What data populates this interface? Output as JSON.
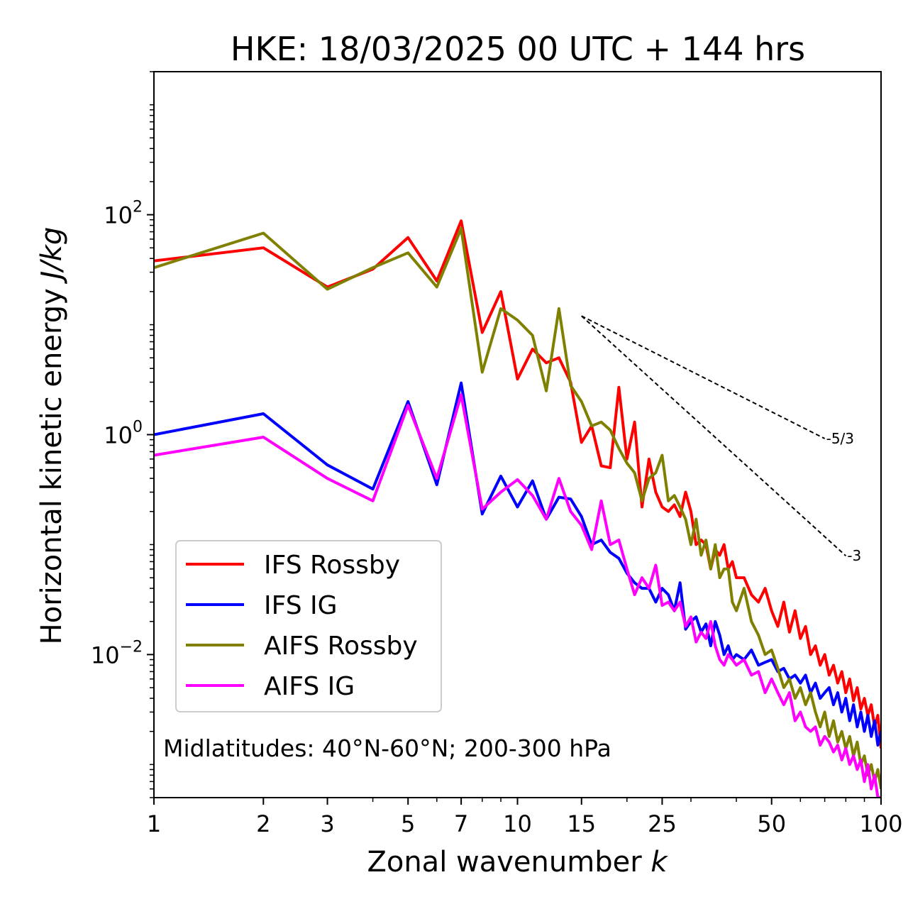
{
  "chart_data": {
    "type": "line",
    "title": "HKE: 18/03/2025 00 UTC + 144 hrs",
    "xlabel": "Zonal wavenumber ",
    "xlabel_italic": "k",
    "ylabel": "Horizontal kinetic energy ",
    "ylabel_italic": "J/kg",
    "xscale": "log",
    "yscale": "log",
    "xlim": [
      1,
      100
    ],
    "ylim": [
      0.0005,
      2000
    ],
    "x_ticks": [
      1,
      2,
      3,
      5,
      7,
      10,
      15,
      25,
      50,
      100
    ],
    "x_tick_labels": [
      "1",
      "2",
      "3",
      "5",
      "7",
      "10",
      "15",
      "25",
      "50",
      "100"
    ],
    "y_ticks": [
      {
        "value": 100,
        "base": "10",
        "exp": "2"
      },
      {
        "value": 1,
        "base": "10",
        "exp": "0"
      },
      {
        "value": 0.01,
        "base": "10",
        "exp": "−2"
      }
    ],
    "legend_position": "lower-left",
    "annotation": "Midlatitudes: 40°N-60°N; 200-300 hPa",
    "reference_slopes": [
      {
        "label": "-5/3",
        "slope": -1.6667,
        "x_start": 15,
        "x_end": 70,
        "y_start": 12
      },
      {
        "label": "-3",
        "slope": -3,
        "x_start": 15,
        "x_end": 80,
        "y_start": 12
      }
    ],
    "series": [
      {
        "name": "IFS Rossby",
        "color": "#ff0000",
        "x": [
          1,
          2,
          3,
          4,
          5,
          6,
          7,
          8,
          9,
          10,
          11,
          12,
          13,
          14,
          15,
          16,
          17,
          18,
          19,
          20,
          21,
          22,
          23,
          24,
          25,
          26,
          27,
          28,
          29,
          30,
          31,
          32,
          33,
          34,
          35,
          36,
          37,
          38,
          39,
          40,
          42,
          44,
          46,
          48,
          50,
          52,
          54,
          56,
          58,
          60,
          62,
          64,
          66,
          68,
          70,
          72,
          74,
          76,
          78,
          80,
          82,
          84,
          86,
          88,
          90,
          92,
          94,
          96,
          98,
          100
        ],
        "y": [
          38,
          50,
          22,
          32,
          62,
          25,
          88,
          8.5,
          20,
          3.2,
          6,
          4.5,
          5,
          3,
          0.85,
          1.2,
          0.52,
          0.5,
          2.7,
          0.6,
          1.3,
          0.22,
          0.6,
          0.3,
          0.22,
          0.2,
          0.23,
          0.18,
          0.3,
          0.2,
          0.1,
          0.11,
          0.1,
          0.06,
          0.09,
          0.08,
          0.1,
          0.06,
          0.07,
          0.05,
          0.05,
          0.035,
          0.03,
          0.04,
          0.025,
          0.018,
          0.03,
          0.016,
          0.025,
          0.014,
          0.018,
          0.01,
          0.012,
          0.008,
          0.01,
          0.0065,
          0.008,
          0.0055,
          0.007,
          0.0045,
          0.006,
          0.0038,
          0.005,
          0.0032,
          0.004,
          0.0028,
          0.0035,
          0.0022,
          0.0028,
          0.0014
        ]
      },
      {
        "name": "IFS IG",
        "color": "#0000ff",
        "x": [
          1,
          2,
          3,
          4,
          5,
          6,
          7,
          8,
          9,
          10,
          11,
          12,
          13,
          14,
          15,
          16,
          17,
          18,
          19,
          20,
          21,
          22,
          23,
          24,
          25,
          26,
          27,
          28,
          29,
          30,
          31,
          32,
          33,
          34,
          35,
          36,
          37,
          38,
          39,
          40,
          42,
          44,
          46,
          48,
          50,
          52,
          54,
          56,
          58,
          60,
          62,
          64,
          66,
          68,
          70,
          72,
          74,
          76,
          78,
          80,
          82,
          84,
          86,
          88,
          90,
          92,
          94,
          96,
          98,
          100
        ],
        "y": [
          1,
          1.55,
          0.53,
          0.32,
          2,
          0.35,
          2.95,
          0.19,
          0.42,
          0.22,
          0.38,
          0.17,
          0.27,
          0.26,
          0.18,
          0.1,
          0.11,
          0.085,
          0.075,
          0.055,
          0.045,
          0.04,
          0.04,
          0.03,
          0.04,
          0.035,
          0.025,
          0.045,
          0.017,
          0.02,
          0.022,
          0.016,
          0.019,
          0.012,
          0.02,
          0.015,
          0.01,
          0.012,
          0.009,
          0.01,
          0.009,
          0.011,
          0.008,
          0.0085,
          0.009,
          0.007,
          0.0075,
          0.006,
          0.0065,
          0.0055,
          0.0065,
          0.0045,
          0.0055,
          0.004,
          0.0045,
          0.005,
          0.0035,
          0.0045,
          0.003,
          0.004,
          0.0025,
          0.0035,
          0.0022,
          0.003,
          0.002,
          0.0028,
          0.0018,
          0.0025,
          0.0015,
          0.002
        ]
      },
      {
        "name": "AIFS Rossby",
        "color": "#808000",
        "x": [
          1,
          2,
          3,
          4,
          5,
          6,
          7,
          8,
          9,
          10,
          11,
          12,
          13,
          14,
          15,
          16,
          17,
          18,
          19,
          20,
          21,
          22,
          23,
          24,
          25,
          26,
          27,
          28,
          29,
          30,
          31,
          32,
          33,
          34,
          35,
          36,
          37,
          38,
          39,
          40,
          42,
          44,
          46,
          48,
          50,
          52,
          54,
          56,
          58,
          60,
          62,
          64,
          66,
          68,
          70,
          72,
          74,
          76,
          78,
          80,
          82,
          84,
          86,
          88,
          90,
          92,
          94,
          96,
          98,
          100
        ],
        "y": [
          33,
          68,
          21,
          33,
          45,
          22,
          75,
          3.7,
          14,
          11,
          8,
          2.5,
          14,
          2.8,
          2,
          1.2,
          1.3,
          1.1,
          0.75,
          0.55,
          0.45,
          0.25,
          0.4,
          0.45,
          0.65,
          0.25,
          0.28,
          0.22,
          0.17,
          0.1,
          0.17,
          0.08,
          0.11,
          0.06,
          0.1,
          0.05,
          0.06,
          0.06,
          0.03,
          0.025,
          0.04,
          0.02,
          0.015,
          0.01,
          0.011,
          0.0075,
          0.005,
          0.006,
          0.004,
          0.005,
          0.0035,
          0.0045,
          0.003,
          0.0022,
          0.003,
          0.0018,
          0.0025,
          0.0016,
          0.002,
          0.0014,
          0.0018,
          0.0012,
          0.0016,
          0.001,
          0.0012,
          0.0008,
          0.001,
          0.0007,
          0.0009,
          0.0006
        ]
      },
      {
        "name": "AIFS IG",
        "color": "#ff00ff",
        "x": [
          1,
          2,
          3,
          4,
          5,
          6,
          7,
          8,
          9,
          10,
          11,
          12,
          13,
          14,
          15,
          16,
          17,
          18,
          19,
          20,
          21,
          22,
          23,
          24,
          25,
          26,
          27,
          28,
          29,
          30,
          31,
          32,
          33,
          34,
          35,
          36,
          37,
          38,
          39,
          40,
          42,
          44,
          46,
          48,
          50,
          52,
          54,
          56,
          58,
          60,
          62,
          64,
          66,
          68,
          70,
          72,
          74,
          76,
          78,
          80,
          82,
          84,
          86,
          88,
          90,
          92,
          94,
          96,
          98,
          100
        ],
        "y": [
          0.65,
          0.95,
          0.4,
          0.25,
          1.85,
          0.4,
          2.3,
          0.21,
          0.3,
          0.39,
          0.28,
          0.17,
          0.4,
          0.2,
          0.15,
          0.09,
          0.25,
          0.1,
          0.11,
          0.06,
          0.035,
          0.05,
          0.04,
          0.065,
          0.028,
          0.03,
          0.025,
          0.03,
          0.018,
          0.022,
          0.013,
          0.016,
          0.014,
          0.02,
          0.012,
          0.009,
          0.008,
          0.01,
          0.009,
          0.008,
          0.009,
          0.0065,
          0.007,
          0.0045,
          0.006,
          0.0045,
          0.0035,
          0.0045,
          0.0025,
          0.003,
          0.0022,
          0.002,
          0.0022,
          0.0015,
          0.0018,
          0.0016,
          0.0013,
          0.0015,
          0.0011,
          0.0014,
          0.001,
          0.0012,
          0.0009,
          0.0011,
          0.0007,
          0.001,
          0.0006,
          0.0008,
          0.0005,
          0.0005
        ]
      }
    ]
  }
}
